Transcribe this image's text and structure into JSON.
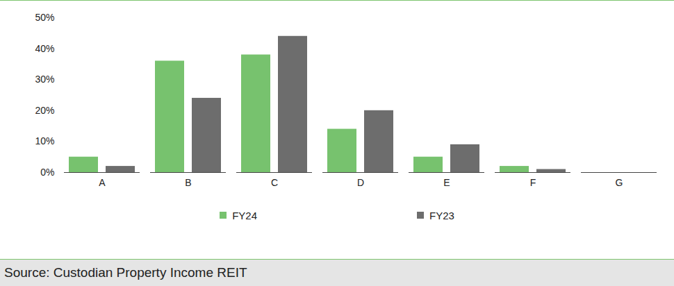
{
  "chart_data": {
    "type": "bar",
    "caption": "Source: Custodian Property Income REIT",
    "categories": [
      "A",
      "B",
      "C",
      "D",
      "E",
      "F",
      "G"
    ],
    "series": [
      {
        "name": "FY24",
        "color": "#77c26e",
        "values": [
          5,
          36,
          38,
          14,
          5,
          2,
          0
        ]
      },
      {
        "name": "FY23",
        "color": "#6d6d6d",
        "values": [
          2,
          24,
          44,
          20,
          9,
          1,
          0
        ]
      }
    ],
    "ylim": [
      0,
      50
    ],
    "yticks": [
      {
        "value": 0,
        "label": "0%"
      },
      {
        "value": 10,
        "label": "10%"
      },
      {
        "value": 20,
        "label": "20%"
      },
      {
        "value": 30,
        "label": "30%"
      },
      {
        "value": 40,
        "label": "40%"
      },
      {
        "value": 50,
        "label": "50%"
      }
    ],
    "grid": false,
    "legend": "bottom"
  }
}
